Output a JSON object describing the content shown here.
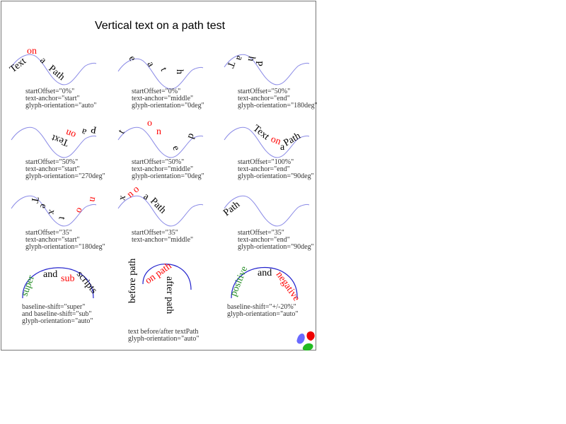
{
  "title": "Vertical text on a path test",
  "text_parts": {
    "text": "Text",
    "on": "on",
    "a": "a",
    "path": "Path",
    "before": "before path",
    "onpath": "on path",
    "after": "after path",
    "super": "super",
    "and": "and",
    "sub": "sub",
    "scripts": "scripts",
    "positive": "positive",
    "negative": "negative"
  },
  "colors": {
    "highlight": "#ff0000",
    "green": "#228b22",
    "guide": "#8a8ae6",
    "guide_dark": "#2222cc"
  },
  "cells": [
    {
      "lines": [
        "startOffset=\"0%\"",
        "text-anchor=\"start\"",
        "glyph-orientation=\"auto\""
      ]
    },
    {
      "lines": [
        "startOffset=\"0%\"",
        "text-anchor=\"middle\"",
        "glyph-orientation=\"0deg\""
      ]
    },
    {
      "lines": [
        "startOffset=\"50%\"",
        "text-anchor=\"end\"",
        "glyph-orientation=\"180deg\""
      ]
    },
    {
      "lines": [
        "startOffset=\"50%\"",
        "text-anchor=\"start\"",
        "glyph-orientation=\"270deg\""
      ]
    },
    {
      "lines": [
        "startOffset=\"50%\"",
        "text-anchor=\"middle\"",
        "glyph-orientation=\"0deg\""
      ]
    },
    {
      "lines": [
        "startOffset=\"100%\"",
        "text-anchor=\"end\"",
        "glyph-orientation=\"90deg\""
      ]
    },
    {
      "lines": [
        "startOffset=\"35\"",
        "text-anchor=\"start\"",
        "glyph-orientation=\"180deg\""
      ]
    },
    {
      "lines": [
        "startOffset=\"35\"",
        "text-anchor=\"middle\""
      ]
    },
    {
      "lines": [
        "startOffset=\"35\"",
        "text-anchor=\"end\"",
        "glyph-orientation=\"90deg\""
      ]
    },
    {
      "lines": [
        "baseline-shift=\"super\"",
        "and baseline-shift=\"sub\"",
        "glyph-orientation=\"auto\""
      ]
    },
    {
      "lines": [
        "text before/after textPath",
        "glyph-orientation=\"auto\""
      ]
    },
    {
      "lines": [
        "baseline-shift=\"+/-20%\"",
        "glyph-orientation=\"auto\""
      ]
    }
  ]
}
